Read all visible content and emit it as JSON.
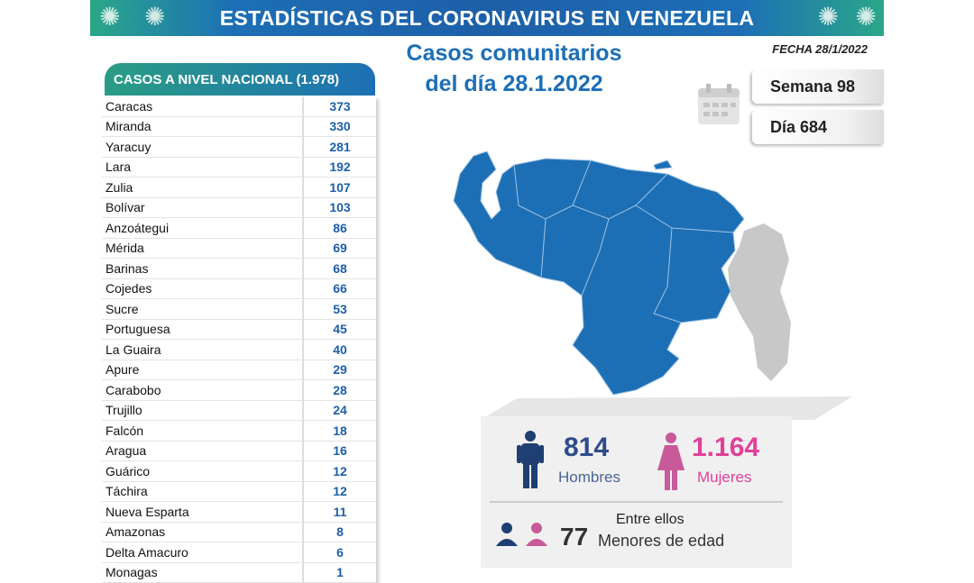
{
  "banner": {
    "title": "ESTADÍSTICAS DEL CORONAVIRUS EN VENEZUELA"
  },
  "subtitle": {
    "line1": "Casos comunitarios",
    "line2": "del día 28.1.2022"
  },
  "fecha": "FECHA 28/1/2022",
  "semana": "Semana 98",
  "dia": "Día 684",
  "table": {
    "header": "CASOS A NIVEL NACIONAL  (1.978)",
    "rows": [
      {
        "name": "Caracas",
        "value": "373"
      },
      {
        "name": "Miranda",
        "value": "330"
      },
      {
        "name": "Yaracuy",
        "value": "281"
      },
      {
        "name": "Lara",
        "value": "192"
      },
      {
        "name": "Zulia",
        "value": "107"
      },
      {
        "name": "Bolívar",
        "value": "103"
      },
      {
        "name": "Anzoátegui",
        "value": "86"
      },
      {
        "name": "Mérida",
        "value": "69"
      },
      {
        "name": "Barinas",
        "value": "68"
      },
      {
        "name": "Cojedes",
        "value": "66"
      },
      {
        "name": "Sucre",
        "value": "53"
      },
      {
        "name": "Portuguesa",
        "value": "45"
      },
      {
        "name": "La Guaira",
        "value": "40"
      },
      {
        "name": "Apure",
        "value": "29"
      },
      {
        "name": "Carabobo",
        "value": "28"
      },
      {
        "name": "Trujillo",
        "value": "24"
      },
      {
        "name": "Falcón",
        "value": "18"
      },
      {
        "name": "Aragua",
        "value": "16"
      },
      {
        "name": "Guárico",
        "value": "12"
      },
      {
        "name": "Táchira",
        "value": "12"
      },
      {
        "name": "Nueva Esparta",
        "value": "11"
      },
      {
        "name": "Amazonas",
        "value": "8"
      },
      {
        "name": "Delta Amacuro",
        "value": "6"
      },
      {
        "name": "Monagas",
        "value": "1"
      }
    ]
  },
  "stats": {
    "men_count": "814",
    "men_label": "Hombres",
    "women_count": "1.164",
    "women_label": "Mujeres",
    "between": "Entre ellos",
    "minors_count": "77",
    "minors_label": "Menores de edad"
  },
  "colors": {
    "blue": "#1d6fb5",
    "men": "#1f3f73",
    "women": "#e0409a",
    "map": "#1d6fb5",
    "esequibo": "#c8c8c8"
  }
}
